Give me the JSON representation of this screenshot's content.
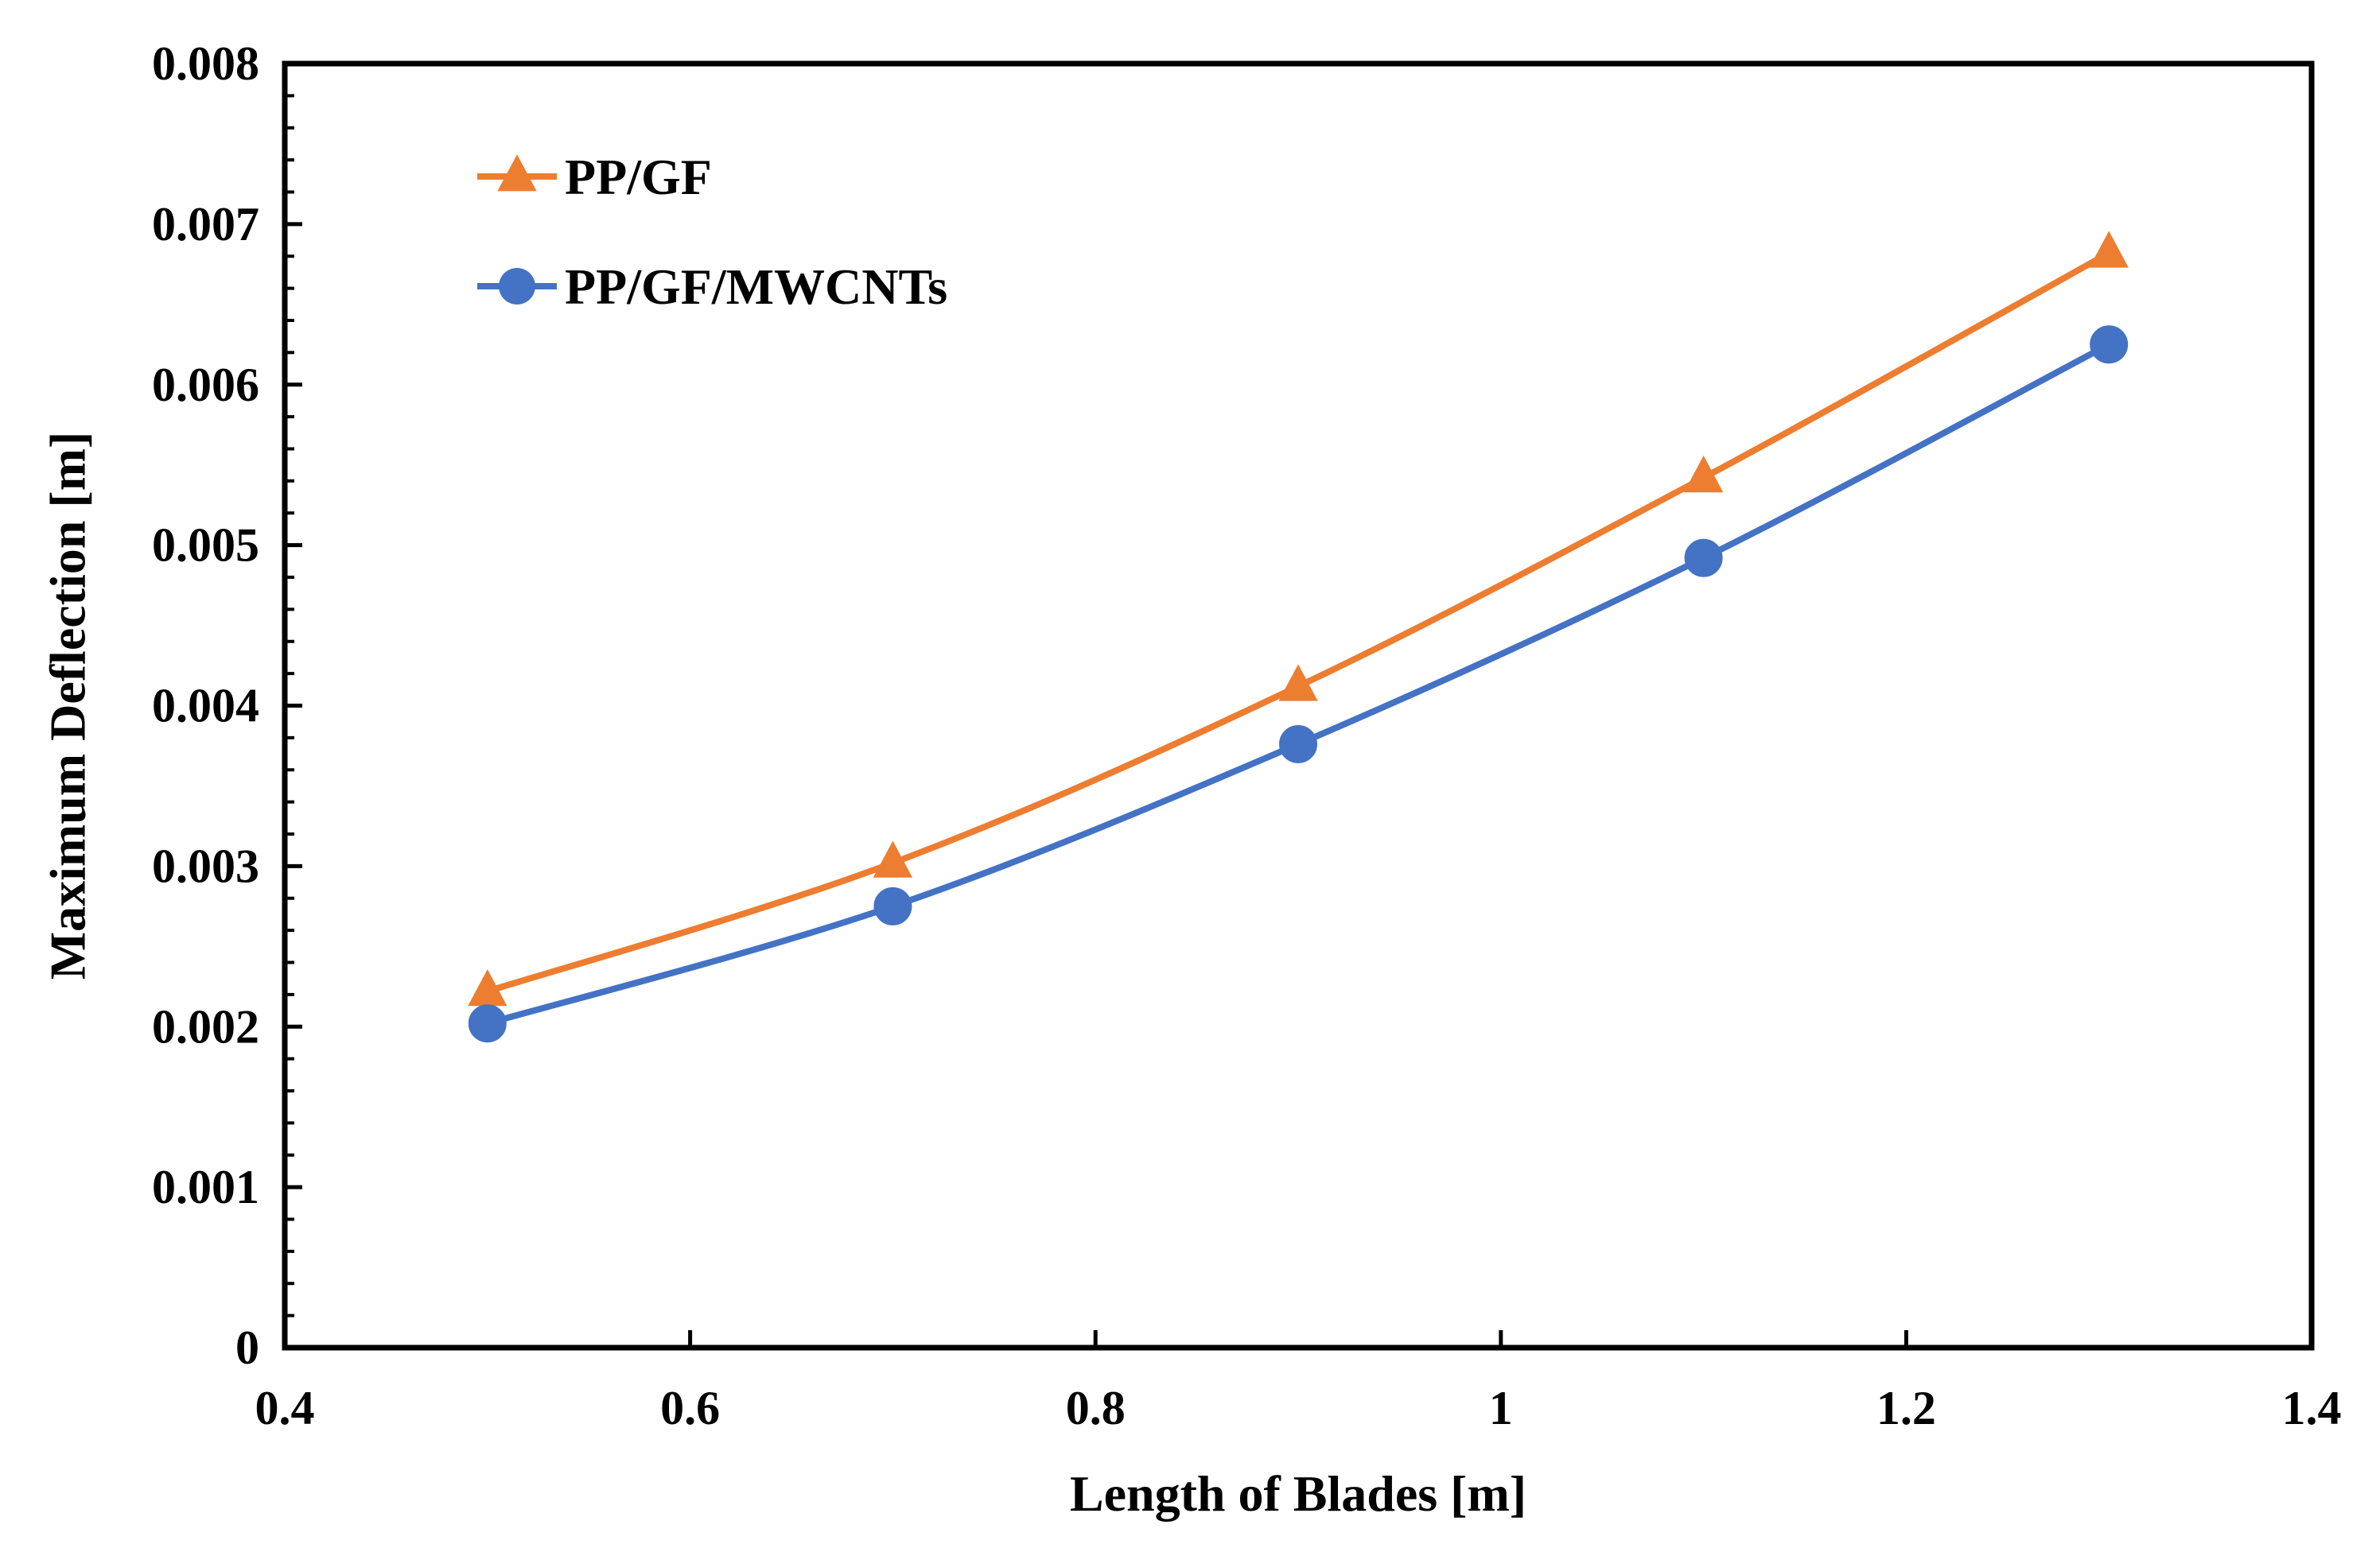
{
  "chart_data": {
    "type": "line",
    "title": "",
    "xlabel": "Length of Blades [m]",
    "ylabel": "Maximum Deflection [m]",
    "xlim": [
      0.4,
      1.4
    ],
    "ylim": [
      0,
      0.008
    ],
    "xticks": [
      0.4,
      0.6,
      0.8,
      1.0,
      1.2,
      1.4
    ],
    "xtick_labels": [
      "0.4",
      "0.6",
      "0.8",
      "1",
      "1.2",
      "1.4"
    ],
    "yticks": [
      0,
      0.001,
      0.002,
      0.003,
      0.004,
      0.005,
      0.006,
      0.007,
      0.008
    ],
    "ytick_labels": [
      "0",
      "0.001",
      "0.002",
      "0.003",
      "0.004",
      "0.005",
      "0.006",
      "0.007",
      "0.008"
    ],
    "y_minor_step": 0.0002,
    "grid": false,
    "legend_position": "top-left",
    "series": [
      {
        "name": "PP/GF",
        "color": "#ED7D31",
        "marker": "triangle",
        "x": [
          0.5,
          0.7,
          0.9,
          1.1,
          1.3
        ],
        "y": [
          0.00222,
          0.00302,
          0.00412,
          0.00542,
          0.00682
        ]
      },
      {
        "name": "PP/GF/MWCNTs",
        "color": "#4472C4",
        "marker": "circle",
        "x": [
          0.5,
          0.7,
          0.9,
          1.1,
          1.3
        ],
        "y": [
          0.00202,
          0.00275,
          0.00376,
          0.00492,
          0.00625
        ]
      }
    ]
  }
}
